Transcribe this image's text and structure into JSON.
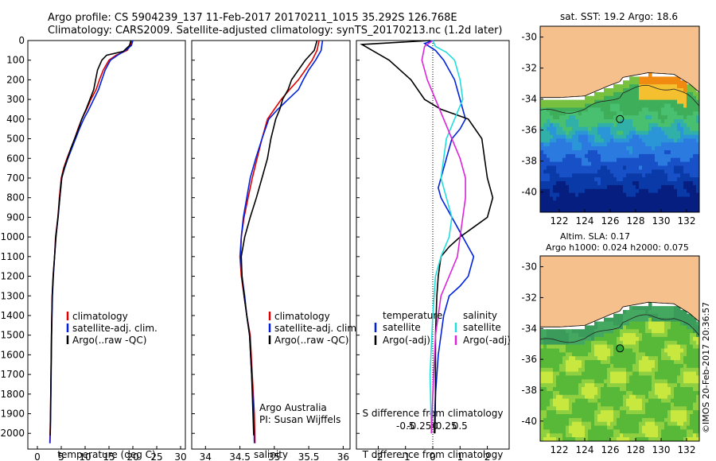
{
  "header": {
    "line1": "Argo profile: CS 5904239_137 11-Feb-2017 20170211_1015 35.292S 126.768E",
    "line2": "Climatology: CARS2009. Satellite-adjusted climatology: synTS_20170213.nc (1.2d later)"
  },
  "side_text": "©IMOS 20-Feb-2017 20:36:57",
  "colors": {
    "climatology": "#e00000",
    "satellite": "#0022dd",
    "argo": "#000000",
    "sat_salinity": "#22dddd",
    "argo_salinity": "#dd22dd",
    "land": "#f5c08c"
  },
  "chart_data": [
    {
      "type": "line",
      "id": "temperature",
      "xlabel": "temperature (deg C)",
      "ylabel": "",
      "xlim": [
        -2,
        31
      ],
      "ylim": [
        2080,
        0
      ],
      "xticks": [
        0,
        5,
        10,
        15,
        20,
        25,
        30
      ],
      "yticks": [
        0,
        100,
        200,
        300,
        400,
        500,
        600,
        700,
        800,
        900,
        1000,
        1100,
        1200,
        1300,
        1400,
        1500,
        1600,
        1700,
        1800,
        1900,
        2000
      ],
      "legend": [
        "climatology",
        "satellite-adj. clim.",
        "Argo(..raw -QC)"
      ],
      "series": [
        {
          "name": "climatology",
          "color_key": "climatology",
          "x": [
            19.8,
            19.5,
            18.8,
            16.5,
            15.0,
            13.8,
            13.0,
            12.3,
            11.2,
            10.3,
            9.3,
            8.5,
            7.8,
            7.0,
            6.2,
            5.5,
            5.0,
            4.6,
            4.3,
            3.8,
            3.6,
            3.3,
            3.1,
            2.95,
            2.85,
            2.75,
            2.6
          ],
          "y": [
            0,
            25,
            50,
            75,
            100,
            150,
            200,
            250,
            300,
            350,
            400,
            450,
            500,
            550,
            600,
            650,
            700,
            800,
            900,
            1000,
            1100,
            1200,
            1300,
            1500,
            1700,
            1900,
            2050
          ]
        },
        {
          "name": "satellite-adj. clim.",
          "color_key": "satellite",
          "x": [
            20.0,
            19.7,
            18.5,
            16.8,
            15.3,
            14.2,
            13.5,
            12.8,
            11.8,
            10.8,
            9.7,
            8.8,
            8.0,
            7.2,
            6.4,
            5.7,
            5.1,
            4.7,
            4.35,
            3.85,
            3.6,
            3.35,
            3.15,
            2.98,
            2.88,
            2.78,
            2.65
          ],
          "y": [
            0,
            25,
            50,
            75,
            100,
            150,
            200,
            250,
            300,
            350,
            400,
            450,
            500,
            550,
            600,
            650,
            700,
            800,
            900,
            1000,
            1100,
            1200,
            1300,
            1500,
            1700,
            1900,
            2050
          ]
        },
        {
          "name": "Argo(..raw -QC)",
          "color_key": "argo",
          "x": [
            19.6,
            19.3,
            18.0,
            14.5,
            13.5,
            12.6,
            12.2,
            11.8,
            11.0,
            10.2,
            9.3,
            8.6,
            7.8,
            7.0,
            6.3,
            5.6,
            5.1,
            4.7,
            4.3,
            3.9,
            3.6,
            3.3,
            3.1,
            2.95,
            2.85,
            2.75,
            2.7
          ],
          "y": [
            0,
            25,
            55,
            75,
            100,
            150,
            200,
            250,
            300,
            350,
            400,
            450,
            500,
            550,
            600,
            650,
            700,
            800,
            900,
            1000,
            1100,
            1200,
            1300,
            1500,
            1700,
            1900,
            2010
          ]
        }
      ]
    },
    {
      "type": "line",
      "id": "salinity",
      "xlabel": "salinity",
      "xlim": [
        33.8,
        36.1
      ],
      "ylim": [
        2080,
        0
      ],
      "xticks": [
        34,
        34.5,
        35,
        35.5,
        36
      ],
      "xticklabels": [
        "34",
        "34.5",
        "35",
        "35.5",
        "36"
      ],
      "legend": [
        "climatology",
        "satellite-adj. clim.",
        "Argo(..raw -QC)"
      ],
      "annotation_lines": [
        "Argo Australia",
        "PI: Susan Wijffels"
      ],
      "series": [
        {
          "name": "climatology",
          "color_key": "climatology",
          "x": [
            35.65,
            35.62,
            35.55,
            35.45,
            35.35,
            35.22,
            35.1,
            35.0,
            34.9,
            34.82,
            34.75,
            34.68,
            34.62,
            34.56,
            34.52,
            34.5,
            34.52,
            34.56,
            34.6,
            34.65,
            34.68,
            34.71,
            34.72
          ],
          "y": [
            0,
            50,
            100,
            150,
            200,
            250,
            300,
            350,
            400,
            500,
            600,
            700,
            800,
            900,
            1000,
            1100,
            1200,
            1300,
            1400,
            1500,
            1700,
            1900,
            2050
          ]
        },
        {
          "name": "satellite-adj. clim.",
          "color_key": "satellite",
          "x": [
            35.7,
            35.68,
            35.6,
            35.5,
            35.42,
            35.35,
            35.2,
            35.05,
            34.92,
            34.82,
            34.73,
            34.65,
            34.6,
            34.55,
            34.52,
            34.51,
            34.53,
            34.57,
            34.6,
            34.64,
            34.67,
            34.7,
            34.71
          ],
          "y": [
            0,
            50,
            100,
            150,
            200,
            250,
            300,
            350,
            400,
            500,
            600,
            700,
            800,
            900,
            1000,
            1100,
            1200,
            1300,
            1400,
            1500,
            1700,
            1900,
            2050
          ]
        },
        {
          "name": "Argo(..raw -QC)",
          "color_key": "argo",
          "x": [
            35.62,
            35.58,
            35.45,
            35.35,
            35.25,
            35.2,
            35.12,
            35.08,
            35.02,
            34.95,
            34.9,
            34.82,
            34.74,
            34.65,
            34.57,
            34.52,
            34.53,
            34.56,
            34.6,
            34.64,
            34.67,
            34.69,
            34.7
          ],
          "y": [
            0,
            50,
            100,
            150,
            200,
            250,
            300,
            350,
            400,
            500,
            600,
            700,
            800,
            900,
            1000,
            1100,
            1200,
            1300,
            1400,
            1500,
            1700,
            1900,
            2010
          ]
        }
      ]
    },
    {
      "type": "line",
      "id": "difference",
      "xlabel": "T difference from climatology",
      "xlabel_top": "S difference from climatology",
      "xlim": [
        -2.8,
        2.8
      ],
      "ylim": [
        2080,
        0
      ],
      "xticks": [
        -2,
        -1,
        0,
        1,
        2
      ],
      "s_ticks": [
        -0.5,
        -0.25,
        0,
        0.25,
        0.5
      ],
      "s_ticklabels": [
        "-0.5",
        "-0.25",
        "0",
        "0.25",
        "0.5"
      ],
      "legend_left_title": "temperature",
      "legend_right_title": "salinity",
      "legend_left": [
        "satellite",
        "Argo(-adj)"
      ],
      "legend_right": [
        "satellite",
        "Argo(-adj)"
      ],
      "series": [
        {
          "name": "T satellite",
          "color_key": "satellite",
          "x": [
            0.0,
            -0.3,
            0.1,
            0.4,
            0.6,
            0.8,
            1.0,
            1.2,
            1.0,
            0.7,
            0.5,
            0.3,
            0.2,
            0.3,
            0.5,
            0.7,
            0.9,
            1.1,
            1.5,
            1.3,
            1.0,
            0.6,
            0.4,
            0.2,
            0.1,
            0.05
          ],
          "y": [
            0,
            15,
            50,
            100,
            150,
            200,
            300,
            400,
            450,
            500,
            600,
            700,
            750,
            800,
            850,
            900,
            950,
            1000,
            1100,
            1200,
            1250,
            1300,
            1400,
            1600,
            1800,
            2000
          ]
        },
        {
          "name": "T Argo(-adj)",
          "color_key": "argo",
          "x": [
            -0.1,
            -2.6,
            -1.6,
            -0.8,
            -0.3,
            0.3,
            1.3,
            1.8,
            1.9,
            2.0,
            2.1,
            2.2,
            2.0,
            1.5,
            1.0,
            0.6,
            0.3,
            0.2,
            0.15,
            0.1,
            0.1,
            0.08
          ],
          "y": [
            0,
            20,
            100,
            200,
            300,
            350,
            400,
            500,
            600,
            700,
            750,
            800,
            900,
            950,
            1000,
            1050,
            1100,
            1200,
            1300,
            1500,
            1800,
            2000
          ]
        },
        {
          "name": "S satellite",
          "color_key": "sat_salinity",
          "x": [
            0.0,
            0.1,
            0.5,
            0.8,
            1.0,
            1.1,
            0.8,
            0.5,
            0.4,
            0.3,
            0.5,
            0.7,
            0.6,
            0.3,
            0.1,
            0.0,
            -0.1,
            -0.05
          ],
          "y": [
            0,
            30,
            60,
            100,
            200,
            300,
            400,
            500,
            600,
            700,
            800,
            900,
            1000,
            1100,
            1200,
            1400,
            1700,
            2000
          ]
        },
        {
          "name": "S Argo(-adj)",
          "color_key": "argo_salinity",
          "x": [
            0.0,
            -0.3,
            -0.4,
            -0.2,
            0.1,
            0.4,
            0.7,
            1.0,
            1.2,
            1.2,
            1.1,
            1.0,
            0.9,
            0.6,
            0.3,
            0.1,
            0.0,
            -0.05
          ],
          "y": [
            0,
            30,
            100,
            200,
            300,
            400,
            500,
            600,
            700,
            800,
            900,
            1000,
            1100,
            1200,
            1300,
            1500,
            1800,
            2000
          ]
        }
      ]
    },
    {
      "type": "heatmap",
      "id": "sst_map",
      "title": "sat. SST: 19.2  Argo: 18.6",
      "xlim": [
        120.5,
        133
      ],
      "ylim": [
        -41.3,
        -29.3
      ],
      "xticks": [
        122,
        124,
        126,
        128,
        130,
        132
      ],
      "yticks": [
        -30,
        -32,
        -34,
        -36,
        -38,
        -40
      ],
      "profile_location": [
        126.77,
        -35.29
      ]
    },
    {
      "type": "heatmap",
      "id": "sla_map",
      "title_line1": "Altim. SLA: 0.17",
      "title_line2": "Argo h1000: 0.024  h2000: 0.075",
      "xlim": [
        120.5,
        133
      ],
      "ylim": [
        -41.3,
        -29.3
      ],
      "xticks": [
        122,
        124,
        126,
        128,
        130,
        132
      ],
      "yticks": [
        -30,
        -32,
        -34,
        -36,
        -38,
        -40
      ],
      "profile_location": [
        126.77,
        -35.29
      ]
    }
  ]
}
